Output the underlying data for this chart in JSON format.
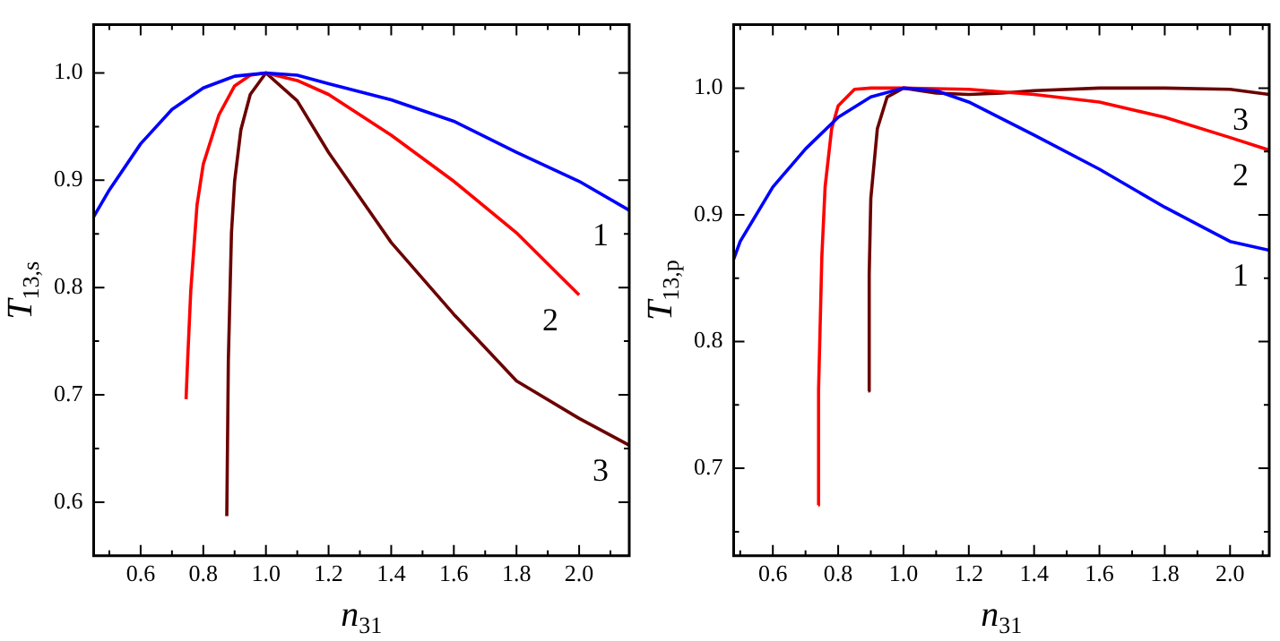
{
  "chart_data": [
    {
      "type": "line",
      "xlabel": "n$_{31}$",
      "ylabel": "T$_{13,s}$",
      "xlim": [
        0.45,
        2.16
      ],
      "ylim": [
        0.55,
        1.045
      ],
      "xticks": [
        {
          "value": 0.5,
          "label": null
        },
        0.6,
        {
          "value": 0.7,
          "label": null
        },
        0.8,
        {
          "value": 0.9,
          "label": null
        },
        {
          "value": 1,
          "label": "1.0"
        },
        {
          "value": 1.1,
          "label": null
        },
        1.2,
        {
          "value": 1.3,
          "label": null
        },
        1.4,
        {
          "value": 1.5,
          "label": null
        },
        1.6,
        {
          "value": 1.7,
          "label": null
        },
        1.8,
        {
          "value": 1.9,
          "label": null
        },
        {
          "value": 2,
          "label": "2.0"
        },
        {
          "value": 2.1,
          "label": null
        }
      ],
      "yticks": [
        0.6,
        {
          "value": 0.65,
          "label": null
        },
        0.7,
        {
          "value": 0.75,
          "label": null
        },
        0.8,
        {
          "value": 0.85,
          "label": null
        },
        0.9,
        {
          "value": 0.95,
          "label": null
        },
        {
          "value": 1,
          "label": "1.0"
        }
      ],
      "series": [
        {
          "name": "1",
          "color": "#0000ff",
          "x": [
            0.45,
            0.5,
            0.6,
            0.7,
            0.8,
            0.9,
            1.0,
            1.1,
            1.2,
            1.4,
            1.6,
            1.8,
            2.0,
            2.16
          ],
          "values": [
            0.866,
            0.891,
            0.934,
            0.966,
            0.986,
            0.997,
            1.0,
            0.998,
            0.99,
            0.975,
            0.955,
            0.926,
            0.899,
            0.872
          ]
        },
        {
          "name": "2",
          "color": "#ff0000",
          "x": [
            0.745,
            0.75,
            0.76,
            0.78,
            0.8,
            0.85,
            0.9,
            0.95,
            1.0,
            1.1,
            1.2,
            1.4,
            1.6,
            1.8,
            2.0
          ],
          "values": [
            0.696,
            0.732,
            0.797,
            0.877,
            0.915,
            0.961,
            0.988,
            0.998,
            1.0,
            0.993,
            0.98,
            0.942,
            0.899,
            0.851,
            0.793
          ]
        },
        {
          "name": "3",
          "color": "#6b0000",
          "x": [
            0.875,
            0.88,
            0.89,
            0.9,
            0.92,
            0.95,
            1.0,
            1.1,
            1.2,
            1.4,
            1.6,
            1.8,
            2.0,
            2.16
          ],
          "values": [
            0.587,
            0.732,
            0.851,
            0.899,
            0.947,
            0.98,
            1.0,
            0.974,
            0.926,
            0.842,
            0.775,
            0.713,
            0.678,
            0.653
          ]
        }
      ]
    },
    {
      "type": "line",
      "xlabel": "n$_{31}$",
      "ylabel": "T$_{13,p}$",
      "xlim": [
        0.48,
        2.12
      ],
      "ylim": [
        0.631,
        1.05
      ],
      "xticks": [
        {
          "value": 0.5,
          "label": null
        },
        0.6,
        {
          "value": 0.7,
          "label": null
        },
        0.8,
        {
          "value": 0.9,
          "label": null
        },
        {
          "value": 1,
          "label": "1.0"
        },
        {
          "value": 1.1,
          "label": null
        },
        1.2,
        {
          "value": 1.3,
          "label": null
        },
        1.4,
        {
          "value": 1.5,
          "label": null
        },
        1.6,
        {
          "value": 1.7,
          "label": null
        },
        1.8,
        {
          "value": 1.9,
          "label": null
        },
        {
          "value": 2,
          "label": "2.0"
        },
        {
          "value": 2.1,
          "label": null
        }
      ],
      "yticks": [
        {
          "value": 0.65,
          "label": null
        },
        0.7,
        {
          "value": 0.75,
          "label": null
        },
        0.8,
        {
          "value": 0.85,
          "label": null
        },
        0.9,
        {
          "value": 0.95,
          "label": null
        },
        {
          "value": 1,
          "label": "1.0"
        }
      ],
      "series": [
        {
          "name": "1",
          "color": "#0000ff",
          "x": [
            0.48,
            0.5,
            0.6,
            0.7,
            0.8,
            0.9,
            1.0,
            1.1,
            1.2,
            1.4,
            1.6,
            1.8,
            2.0,
            2.12
          ],
          "values": [
            0.865,
            0.879,
            0.922,
            0.952,
            0.977,
            0.993,
            1.0,
            0.998,
            0.989,
            0.963,
            0.936,
            0.906,
            0.879,
            0.872
          ]
        },
        {
          "name": "2",
          "color": "#ff0000",
          "x": [
            0.739,
            0.74,
            0.75,
            0.76,
            0.78,
            0.8,
            0.85,
            0.9,
            1.0,
            1.2,
            1.4,
            1.6,
            1.8,
            2.0,
            2.12
          ],
          "values": [
            0.671,
            0.762,
            0.867,
            0.922,
            0.968,
            0.986,
            0.999,
            1.0,
            1.0,
            0.999,
            0.995,
            0.989,
            0.977,
            0.961,
            0.951
          ]
        },
        {
          "name": "3",
          "color": "#6b0000",
          "x": [
            0.892,
            0.895,
            0.9,
            0.92,
            0.95,
            1.0,
            1.1,
            1.2,
            1.3,
            1.4,
            1.6,
            1.8,
            2.0,
            2.12
          ],
          "values": [
            0.761,
            0.853,
            0.913,
            0.968,
            0.993,
            1.0,
            0.996,
            0.995,
            0.996,
            0.998,
            1.0,
            1.0,
            0.999,
            0.995
          ]
        }
      ]
    }
  ]
}
